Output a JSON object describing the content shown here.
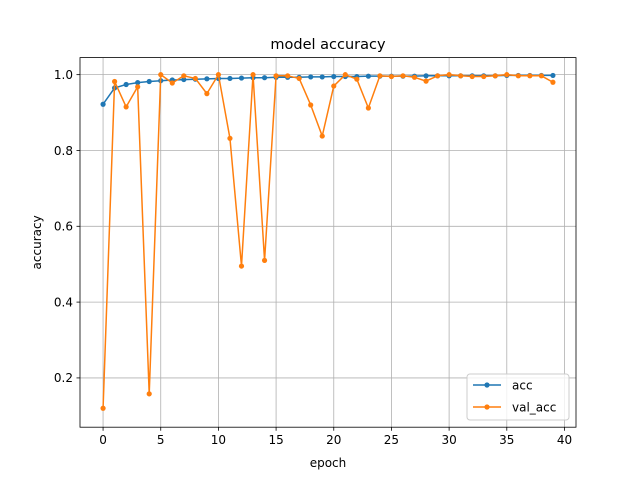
{
  "chart_data": {
    "type": "line",
    "title": "model accuracy",
    "xlabel": "epoch",
    "ylabel": "accuracy",
    "xlim": [
      -2,
      41
    ],
    "ylim": [
      0.07,
      1.045
    ],
    "xticks": [
      0,
      5,
      10,
      15,
      20,
      25,
      30,
      35,
      40
    ],
    "yticks": [
      0.2,
      0.4,
      0.6,
      0.8,
      1.0
    ],
    "ytick_labels": [
      "0.2",
      "0.4",
      "0.6",
      "0.8",
      "1.0"
    ],
    "grid": true,
    "legend_position": "lower-right",
    "x": [
      0,
      1,
      2,
      3,
      4,
      5,
      6,
      7,
      8,
      9,
      10,
      11,
      12,
      13,
      14,
      15,
      16,
      17,
      18,
      19,
      20,
      21,
      22,
      23,
      24,
      25,
      26,
      27,
      28,
      29,
      30,
      31,
      32,
      33,
      34,
      35,
      36,
      37,
      38,
      39
    ],
    "series": [
      {
        "name": "acc",
        "color": "#1f77b4",
        "marker": "circle",
        "values": [
          0.922,
          0.965,
          0.974,
          0.979,
          0.982,
          0.984,
          0.986,
          0.987,
          0.988,
          0.989,
          0.99,
          0.99,
          0.991,
          0.992,
          0.992,
          0.993,
          0.993,
          0.993,
          0.994,
          0.994,
          0.995,
          0.995,
          0.995,
          0.996,
          0.996,
          0.996,
          0.996,
          0.996,
          0.997,
          0.997,
          0.997,
          0.997,
          0.997,
          0.997,
          0.997,
          0.998,
          0.998,
          0.998,
          0.998,
          0.998
        ]
      },
      {
        "name": "val_acc",
        "color": "#ff7f0e",
        "marker": "circle",
        "values": [
          0.12,
          0.982,
          0.915,
          0.968,
          0.158,
          1.0,
          0.978,
          0.997,
          0.99,
          0.95,
          1.0,
          0.832,
          0.495,
          1.0,
          0.51,
          0.997,
          0.997,
          0.99,
          0.92,
          0.838,
          0.97,
          1.0,
          0.988,
          0.912,
          0.997,
          0.995,
          0.997,
          0.993,
          0.983,
          0.997,
          1.0,
          0.997,
          0.995,
          0.995,
          0.997,
          1.0,
          0.997,
          0.997,
          0.997,
          0.98
        ]
      }
    ]
  }
}
